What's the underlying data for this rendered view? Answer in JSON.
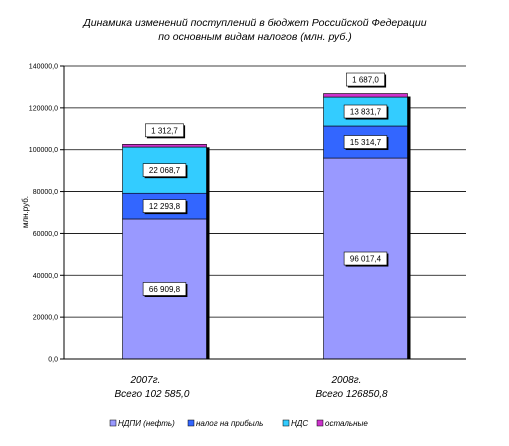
{
  "chart_data": {
    "type": "bar",
    "stacked": true,
    "title_lines": [
      "Динамика изменений поступлений в бюджет Российской Федерации",
      "по основным видам налогов (млн. руб.)"
    ],
    "ylabel": "млн.руб.",
    "xlabel": "",
    "ylim": [
      0,
      140000
    ],
    "yticks": [
      0,
      20000,
      40000,
      60000,
      80000,
      100000,
      120000,
      140000
    ],
    "ytick_labels": [
      "0,0",
      "20000,0",
      "40000,0",
      "60000,0",
      "80000,0",
      "100000,0",
      "120000,0",
      "140000,0"
    ],
    "grid": true,
    "categories": [
      "2007г.",
      "2008г."
    ],
    "category_totals": [
      "Всего 102 585,0",
      "Всего 126850,8"
    ],
    "series": [
      {
        "name": "НДПИ (нефть)",
        "color": "#9999ff",
        "values": [
          66909.8,
          96017.4
        ],
        "labels": [
          "66 909,8",
          "96 017,4"
        ]
      },
      {
        "name": "налог на прибыль",
        "color": "#3366ff",
        "values": [
          12293.8,
          15314.7
        ],
        "labels": [
          "12 293,8",
          "15 314,7"
        ]
      },
      {
        "name": "НДС",
        "color": "#33ccff",
        "values": [
          22068.7,
          13831.7
        ],
        "labels": [
          "22 068,7",
          "13 831,7"
        ]
      },
      {
        "name": "остальные",
        "color": "#cc33cc",
        "values": [
          1312.7,
          1687.0
        ],
        "labels": [
          "1 312,7",
          "1 687,0"
        ]
      }
    ],
    "legend_position": "bottom"
  }
}
